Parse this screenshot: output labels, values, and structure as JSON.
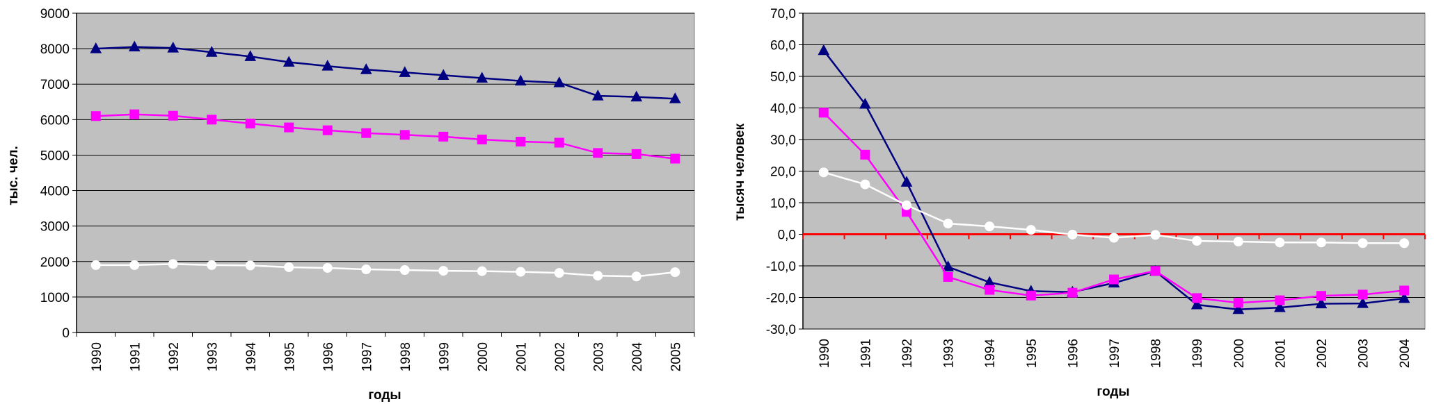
{
  "chart_data": [
    {
      "type": "line",
      "xlabel": "годы",
      "ylabel": "тыс. чел.",
      "ylim": [
        0,
        9000
      ],
      "yticks": [
        "0",
        "1000",
        "2000",
        "3000",
        "4000",
        "5000",
        "6000",
        "7000",
        "8000",
        "9000"
      ],
      "categories": [
        "1990",
        "1991",
        "1992",
        "1993",
        "1994",
        "1995",
        "1996",
        "1997",
        "1998",
        "1999",
        "2000",
        "2001",
        "2002",
        "2003",
        "2004",
        "2005"
      ],
      "grid": true,
      "plot_background": "#c0c0c0",
      "series": [
        {
          "color": "#000080",
          "marker": "triangle",
          "values": [
            8000,
            8050,
            8020,
            7900,
            7780,
            7620,
            7510,
            7410,
            7330,
            7250,
            7170,
            7090,
            7040,
            6670,
            6640,
            6590
          ]
        },
        {
          "color": "#ff00ff",
          "marker": "square",
          "values": [
            6100,
            6150,
            6110,
            6000,
            5890,
            5780,
            5700,
            5620,
            5570,
            5520,
            5440,
            5380,
            5350,
            5060,
            5030,
            4900
          ]
        },
        {
          "color": "#ffffff",
          "marker": "circle",
          "values": [
            1900,
            1900,
            1930,
            1900,
            1890,
            1840,
            1820,
            1780,
            1760,
            1740,
            1730,
            1710,
            1680,
            1600,
            1580,
            1700
          ]
        }
      ]
    },
    {
      "type": "line",
      "xlabel": "годы",
      "ylabel": "тысяч человек",
      "ylim": [
        -30,
        70
      ],
      "yticks": [
        "-30,0",
        "-20,0",
        "-10,0",
        "0,0",
        "10,0",
        "20,0",
        "30,0",
        "40,0",
        "50,0",
        "60,0",
        "70,0"
      ],
      "categories": [
        "1990",
        "1991",
        "1992",
        "1993",
        "1994",
        "1995",
        "1996",
        "1997",
        "1998",
        "1999",
        "2000",
        "2001",
        "2002",
        "2003",
        "2004"
      ],
      "grid": true,
      "plot_background": "#c0c0c0",
      "zero_line_color": "#ff0000",
      "series": [
        {
          "color": "#000080",
          "marker": "triangle",
          "values": [
            58.2,
            41.2,
            16.5,
            -10.3,
            -15.2,
            -18.0,
            -18.3,
            -15.4,
            -11.7,
            -22.3,
            -23.8,
            -23.2,
            -22.0,
            -21.9,
            -20.3
          ]
        },
        {
          "color": "#ff00ff",
          "marker": "square",
          "values": [
            38.5,
            25.2,
            7.1,
            -13.5,
            -17.6,
            -19.4,
            -18.5,
            -14.3,
            -11.6,
            -20.2,
            -21.7,
            -20.9,
            -19.5,
            -19.1,
            -17.8
          ]
        },
        {
          "color": "#ffffff",
          "marker": "circle",
          "values": [
            19.6,
            15.8,
            9.2,
            3.4,
            2.5,
            1.4,
            -0.1,
            -1.1,
            -0.2,
            -2.1,
            -2.3,
            -2.6,
            -2.6,
            -2.8,
            -2.8
          ]
        }
      ]
    }
  ]
}
